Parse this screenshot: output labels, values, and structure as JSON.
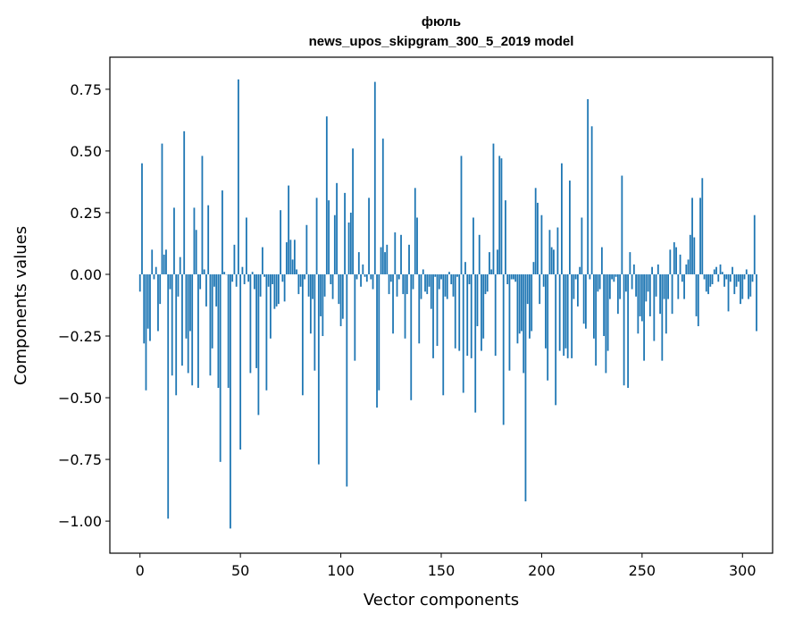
{
  "chart_data": {
    "type": "bar",
    "title": "фюль",
    "subtitle": "news_upos_skipgram_300_5_2019 model",
    "xlabel": "Vector components",
    "ylabel": "Components values",
    "xlim": [
      -15,
      315
    ],
    "ylim": [
      -1.13,
      0.88
    ],
    "xticks": [
      0,
      50,
      100,
      150,
      200,
      250,
      300
    ],
    "yticks": [
      -1.0,
      -0.75,
      -0.5,
      -0.25,
      0.0,
      0.25,
      0.5,
      0.75
    ],
    "ytick_labels": [
      "−1.00",
      "−0.75",
      "−0.50",
      "−0.25",
      "0.00",
      "0.25",
      "0.50",
      "0.75"
    ],
    "grid": false,
    "color": "#1f77b4",
    "values": [
      -0.07,
      0.45,
      -0.28,
      -0.47,
      -0.22,
      -0.27,
      0.1,
      -0.02,
      0.03,
      -0.23,
      -0.12,
      0.53,
      0.08,
      0.1,
      -0.99,
      -0.06,
      -0.41,
      0.27,
      -0.49,
      -0.09,
      0.07,
      -0.37,
      0.58,
      -0.26,
      -0.4,
      -0.23,
      -0.45,
      0.27,
      0.18,
      -0.46,
      -0.06,
      0.48,
      0.02,
      -0.13,
      0.28,
      -0.41,
      -0.3,
      -0.05,
      -0.13,
      -0.46,
      -0.76,
      0.34,
      0.01,
      0.0,
      -0.46,
      -1.03,
      -0.03,
      0.12,
      -0.05,
      0.79,
      -0.71,
      0.03,
      -0.04,
      0.23,
      -0.03,
      -0.4,
      0.01,
      -0.06,
      -0.38,
      -0.57,
      -0.09,
      0.11,
      -0.01,
      -0.47,
      -0.05,
      -0.26,
      -0.04,
      -0.14,
      -0.13,
      -0.12,
      0.26,
      -0.03,
      -0.11,
      0.13,
      0.36,
      0.14,
      0.06,
      0.14,
      0.02,
      -0.08,
      -0.05,
      -0.49,
      -0.02,
      0.2,
      -0.09,
      -0.24,
      -0.1,
      -0.39,
      0.31,
      -0.77,
      -0.17,
      -0.25,
      -0.09,
      0.64,
      0.3,
      -0.04,
      -0.1,
      0.24,
      0.37,
      -0.12,
      -0.21,
      -0.18,
      0.33,
      -0.86,
      0.21,
      0.25,
      0.51,
      -0.35,
      -0.02,
      0.09,
      -0.05,
      0.04,
      -0.01,
      -0.03,
      0.31,
      -0.02,
      -0.06,
      0.78,
      -0.54,
      -0.47,
      0.11,
      0.55,
      0.09,
      0.12,
      -0.08,
      -0.03,
      -0.24,
      0.17,
      -0.09,
      -0.02,
      0.16,
      -0.08,
      -0.26,
      -0.08,
      0.12,
      -0.51,
      -0.06,
      0.35,
      0.23,
      -0.28,
      -0.1,
      0.02,
      -0.07,
      -0.08,
      -0.05,
      -0.14,
      -0.34,
      -0.01,
      -0.29,
      -0.06,
      -0.02,
      -0.49,
      -0.09,
      -0.1,
      0.01,
      -0.04,
      -0.09,
      -0.3,
      -0.01,
      -0.31,
      0.48,
      -0.48,
      0.05,
      -0.33,
      -0.04,
      -0.34,
      0.23,
      -0.56,
      -0.21,
      0.16,
      -0.31,
      -0.26,
      -0.08,
      -0.07,
      0.09,
      0.02,
      0.53,
      -0.33,
      0.1,
      0.48,
      0.47,
      -0.61,
      0.3,
      -0.04,
      -0.39,
      -0.02,
      -0.02,
      -0.03,
      -0.28,
      -0.24,
      -0.23,
      -0.4,
      -0.92,
      -0.12,
      -0.26,
      -0.23,
      0.05,
      0.35,
      0.29,
      -0.12,
      0.24,
      -0.05,
      -0.3,
      -0.43,
      0.18,
      0.11,
      0.1,
      -0.53,
      0.19,
      -0.31,
      0.45,
      -0.33,
      -0.3,
      -0.34,
      0.38,
      -0.34,
      -0.1,
      -0.02,
      -0.13,
      0.03,
      0.23,
      -0.2,
      -0.22,
      0.71,
      -0.02,
      0.6,
      -0.26,
      -0.37,
      -0.07,
      -0.06,
      0.11,
      -0.25,
      -0.4,
      -0.31,
      -0.1,
      -0.02,
      -0.03,
      -0.01,
      -0.16,
      -0.1,
      0.4,
      -0.45,
      -0.07,
      -0.46,
      0.09,
      -0.06,
      0.04,
      -0.09,
      -0.24,
      -0.17,
      -0.19,
      -0.35,
      -0.11,
      -0.07,
      -0.17,
      0.03,
      -0.27,
      -0.09,
      0.04,
      -0.16,
      -0.35,
      -0.1,
      -0.24,
      -0.1,
      0.1,
      -0.16,
      0.13,
      0.11,
      -0.1,
      0.08,
      -0.03,
      -0.1,
      0.04,
      0.06,
      0.16,
      0.31,
      0.15,
      -0.17,
      -0.21,
      0.31,
      0.39,
      -0.02,
      -0.07,
      -0.08,
      -0.05,
      -0.04,
      0.02,
      0.03,
      -0.03,
      0.04,
      0.01,
      -0.05,
      -0.02,
      -0.15,
      -0.03,
      0.03,
      -0.08,
      -0.05,
      -0.03,
      -0.12,
      -0.1,
      -0.02,
      0.02,
      -0.1,
      -0.09,
      -0.03,
      0.24,
      -0.23
    ]
  }
}
